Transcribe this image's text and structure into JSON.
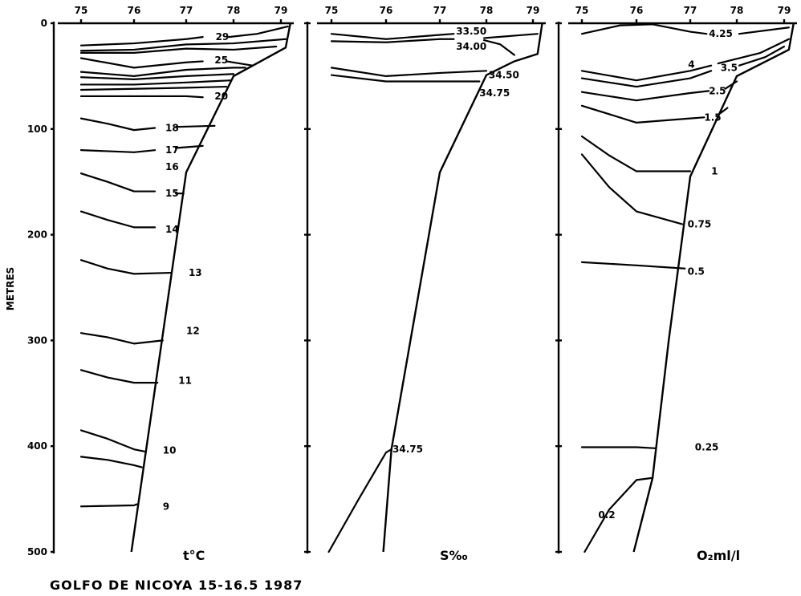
{
  "chart_data": [
    {
      "type": "line",
      "id": "temperature",
      "title": "t°C",
      "xlabel": "",
      "ylabel": "METRES",
      "xticks": [
        "75",
        "76",
        "77",
        "78",
        "79"
      ],
      "ylim": [
        0,
        500
      ],
      "bottom_profile": [
        [
          79.2,
          0
        ],
        [
          79.1,
          23
        ],
        [
          78.0,
          50
        ],
        [
          77.0,
          141
        ],
        [
          75.95,
          500
        ]
      ],
      "isolines": [
        {
          "points": [
            [
              75,
              21
            ],
            [
              76,
              19
            ],
            [
              77,
              15
            ],
            [
              77.35,
              13
            ]
          ]
        },
        {
          "points": [
            [
              77.9,
              13
            ],
            [
              78.5,
              10
            ],
            [
              79.15,
              3
            ]
          ]
        },
        {
          "points": [
            [
              75,
              26
            ],
            [
              76,
              25
            ],
            [
              77,
              20
            ],
            [
              78,
              19
            ],
            [
              79.1,
              15
            ]
          ]
        },
        {
          "points": [
            [
              75,
              28
            ],
            [
              76,
              28
            ],
            [
              77,
              24
            ],
            [
              78,
              25
            ],
            [
              78.9,
              22
            ]
          ]
        },
        {
          "points": [
            [
              75,
              33
            ],
            [
              76,
              42
            ],
            [
              77,
              37
            ],
            [
              77.35,
              36
            ]
          ]
        },
        {
          "points": [
            [
              77.85,
              36
            ],
            [
              78.4,
              40
            ]
          ]
        },
        {
          "points": [
            [
              75,
              46
            ],
            [
              76,
              50
            ],
            [
              77,
              44
            ],
            [
              78,
              42
            ],
            [
              78.25,
              42
            ]
          ]
        },
        {
          "points": [
            [
              75,
              51
            ],
            [
              76,
              53
            ],
            [
              77,
              50
            ],
            [
              78,
              48
            ]
          ]
        },
        {
          "points": [
            [
              75,
              58
            ],
            [
              76,
              58
            ],
            [
              77,
              56
            ],
            [
              77.95,
              54
            ]
          ]
        },
        {
          "points": [
            [
              75,
              63
            ],
            [
              76,
              62
            ],
            [
              77,
              61
            ],
            [
              77.85,
              60
            ]
          ]
        },
        {
          "points": [
            [
              75,
              69
            ],
            [
              76,
              69
            ],
            [
              77,
              69
            ],
            [
              77.35,
              70
            ]
          ]
        },
        {
          "points": [
            [
              75,
              90
            ],
            [
              75.5,
              95
            ],
            [
              76,
              101
            ],
            [
              76.4,
              99
            ]
          ]
        },
        {
          "points": [
            [
              76.8,
              98
            ],
            [
              77.6,
              97
            ]
          ]
        },
        {
          "points": [
            [
              75,
              120
            ],
            [
              76,
              122
            ],
            [
              76.4,
              120
            ]
          ]
        },
        {
          "points": [
            [
              76.8,
              118
            ],
            [
              77.35,
              116
            ]
          ]
        },
        {
          "points": [
            [
              75,
              142
            ],
            [
              75.5,
              150
            ],
            [
              76,
              159
            ],
            [
              76.4,
              159
            ]
          ]
        },
        {
          "points": [
            [
              76.8,
              161
            ],
            [
              76.95,
              161
            ]
          ]
        },
        {
          "points": [
            [
              75,
              178
            ],
            [
              75.5,
              186
            ],
            [
              76,
              193
            ],
            [
              76.4,
              193
            ]
          ]
        },
        {
          "points": [
            [
              75,
              224
            ],
            [
              75.5,
              232
            ],
            [
              76,
              237
            ],
            [
              76.7,
              236
            ]
          ]
        },
        {
          "points": [
            [
              75,
              293
            ],
            [
              75.5,
              297
            ],
            [
              76,
              303
            ],
            [
              76.55,
              300
            ]
          ]
        },
        {
          "points": [
            [
              75,
              328
            ],
            [
              75.5,
              335
            ],
            [
              76,
              340
            ],
            [
              76.45,
              340
            ]
          ]
        },
        {
          "points": [
            [
              75,
              385
            ],
            [
              75.5,
              393
            ],
            [
              76,
              403
            ],
            [
              76.2,
              405
            ]
          ]
        },
        {
          "points": [
            [
              75,
              410
            ],
            [
              75.5,
              413
            ],
            [
              76,
              418
            ],
            [
              76.15,
              420
            ]
          ]
        },
        {
          "points": [
            [
              75,
              457
            ],
            [
              76,
              456
            ],
            [
              76.05,
              455
            ]
          ]
        }
      ],
      "labels": [
        {
          "text": "29",
          "x": 77.62,
          "d": 13
        },
        {
          "text": "25",
          "x": 77.6,
          "d": 35
        },
        {
          "text": "20",
          "x": 77.6,
          "d": 69
        },
        {
          "text": "18",
          "x": 76.6,
          "d": 99
        },
        {
          "text": "17",
          "x": 76.6,
          "d": 120
        },
        {
          "text": "16",
          "x": 76.6,
          "d": 136
        },
        {
          "text": "15",
          "x": 76.6,
          "d": 161
        },
        {
          "text": "14",
          "x": 76.6,
          "d": 195
        },
        {
          "text": "13",
          "x": 77.05,
          "d": 236
        },
        {
          "text": "12",
          "x": 77.0,
          "d": 291
        },
        {
          "text": "11",
          "x": 76.85,
          "d": 338
        },
        {
          "text": "10",
          "x": 76.55,
          "d": 404
        },
        {
          "text": "9",
          "x": 76.55,
          "d": 457
        }
      ]
    },
    {
      "type": "line",
      "id": "salinity",
      "title": "S‰",
      "xticks": [
        "75",
        "76",
        "77",
        "78",
        "79"
      ],
      "ylim": [
        0,
        500
      ],
      "bottom_profile": [
        [
          79.2,
          0
        ],
        [
          79.1,
          29
        ],
        [
          78.6,
          36
        ],
        [
          78.0,
          49
        ],
        [
          77.0,
          141
        ],
        [
          76.1,
          403
        ],
        [
          75.95,
          500
        ]
      ],
      "isolines": [
        {
          "points": [
            [
              75,
              10
            ],
            [
              76,
              15
            ],
            [
              77,
              11
            ],
            [
              77.3,
              10
            ]
          ]
        },
        {
          "points": [
            [
              77.95,
              14
            ],
            [
              79.1,
              10
            ]
          ]
        },
        {
          "points": [
            [
              75,
              17
            ],
            [
              76,
              18
            ],
            [
              77,
              15
            ],
            [
              77.3,
              15
            ]
          ]
        },
        {
          "points": [
            [
              77.95,
              16
            ],
            [
              78.3,
              20
            ],
            [
              78.6,
              30
            ]
          ]
        },
        {
          "points": [
            [
              75,
              42
            ],
            [
              76,
              50
            ],
            [
              77,
              47
            ],
            [
              78.0,
              45
            ]
          ]
        },
        {
          "points": [
            [
              75,
              49
            ],
            [
              76,
              55
            ],
            [
              77,
              55
            ],
            [
              77.85,
              55
            ]
          ]
        },
        {
          "points": [
            [
              74.95,
              500
            ],
            [
              75.5,
              450
            ],
            [
              76.0,
              406
            ],
            [
              76.1,
              403
            ]
          ]
        }
      ],
      "labels": [
        {
          "text": "33.50",
          "x": 77.35,
          "d": 10
        },
        {
          "text": "34.00",
          "x": 77.35,
          "d": 15
        },
        {
          "text": "34.50",
          "x": 78.05,
          "d": 52
        },
        {
          "text": "34.75",
          "x": 77.85,
          "d": 56
        },
        {
          "text": "34.75",
          "x": 76.12,
          "d": 403
        }
      ]
    },
    {
      "type": "line",
      "id": "oxygen",
      "title": "O₂ml/l",
      "xticks": [
        "75",
        "76",
        "77",
        "78",
        "79"
      ],
      "ylim": [
        0,
        500
      ],
      "bottom_profile": [
        [
          79.2,
          0
        ],
        [
          79.1,
          25
        ],
        [
          78.0,
          50
        ],
        [
          77.0,
          145
        ],
        [
          76.6,
          300
        ],
        [
          76.3,
          430
        ],
        [
          75.95,
          500
        ]
      ],
      "isolines": [
        {
          "points": [
            [
              75,
              10
            ],
            [
              75.7,
              2
            ],
            [
              76.3,
              1
            ],
            [
              77,
              8
            ],
            [
              77.35,
              10
            ]
          ]
        },
        {
          "points": [
            [
              78.05,
              10
            ],
            [
              79.1,
              4
            ]
          ]
        },
        {
          "points": [
            [
              75,
              45
            ],
            [
              76,
              54
            ],
            [
              77,
              45
            ],
            [
              77.45,
              40
            ]
          ]
        },
        {
          "points": [
            [
              77.6,
              38
            ],
            [
              78.5,
              28
            ],
            [
              79.1,
              15
            ]
          ]
        },
        {
          "points": [
            [
              75,
              52
            ],
            [
              76,
              60
            ],
            [
              77,
              52
            ],
            [
              77.45,
              45
            ]
          ]
        },
        {
          "points": [
            [
              78.05,
              40
            ],
            [
              78.6,
              32
            ],
            [
              79.0,
              22
            ]
          ]
        },
        {
          "points": [
            [
              75,
              65
            ],
            [
              76,
              73
            ],
            [
              77,
              66
            ],
            [
              77.4,
              64
            ]
          ]
        },
        {
          "points": [
            [
              77.75,
              62
            ],
            [
              78.0,
              55
            ]
          ]
        },
        {
          "points": [
            [
              75,
              78
            ],
            [
              76,
              94
            ],
            [
              77,
              90
            ],
            [
              77.3,
              89
            ]
          ]
        },
        {
          "points": [
            [
              77.65,
              85
            ],
            [
              77.8,
              80
            ]
          ]
        },
        {
          "points": [
            [
              75,
              107
            ],
            [
              75.5,
              125
            ],
            [
              76,
              140
            ],
            [
              77.0,
              140
            ]
          ]
        },
        {
          "points": [
            [
              75,
              124
            ],
            [
              75.5,
              155
            ],
            [
              76,
              178
            ],
            [
              76.85,
              190
            ]
          ]
        },
        {
          "points": [
            [
              75,
              226
            ],
            [
              76,
              229
            ],
            [
              76.9,
              232
            ]
          ]
        },
        {
          "points": [
            [
              75,
              401
            ],
            [
              76,
              401
            ],
            [
              76.35,
              402
            ]
          ]
        },
        {
          "points": [
            [
              75.05,
              500
            ],
            [
              75.5,
              460
            ],
            [
              76.0,
              432
            ],
            [
              76.3,
              430
            ]
          ]
        }
      ],
      "labels": [
        {
          "text": "4.25",
          "x": 77.4,
          "d": 10
        },
        {
          "text": "4",
          "x": 77.47,
          "d": 39
        },
        {
          "text": "3.5",
          "x": 77.65,
          "d": 42
        },
        {
          "text": "2.5",
          "x": 77.4,
          "d": 64
        },
        {
          "text": "1.5",
          "x": 77.3,
          "d": 89
        },
        {
          "text": "1",
          "x": 77.45,
          "d": 140
        },
        {
          "text": "0.75",
          "x": 76.95,
          "d": 190
        },
        {
          "text": "0.5",
          "x": 76.95,
          "d": 235
        },
        {
          "text": "0.25",
          "x": 77.1,
          "d": 401
        },
        {
          "text": "0.2",
          "x": 75.3,
          "d": 465
        }
      ]
    }
  ],
  "yaxis": {
    "label": "METRES",
    "ticks": [
      "0",
      "100",
      "200",
      "300",
      "400",
      "500"
    ]
  },
  "caption": "GOLFO DE NICOYA  15-16.5   1987"
}
